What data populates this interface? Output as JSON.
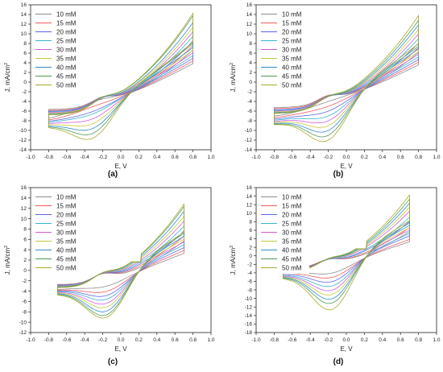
{
  "legend_labels": [
    "10 mM",
    "15 mM",
    "20 mM",
    "25 mM",
    "30 mM",
    "35 mM",
    "40 mM",
    "45 mM",
    "50 mM"
  ],
  "series_colors": [
    "#8c8c8c",
    "#f25a5a",
    "#5a68e6",
    "#37b3d6",
    "#d45ad9",
    "#c8c838",
    "#2f8ccf",
    "#4f9a57",
    "#a8a82a"
  ],
  "chart_data": [
    {
      "type": "line",
      "panel_label": "(a)",
      "xlabel": "E, V",
      "ylabel": "J, mA/cm",
      "xlim": [
        -1.0,
        1.0
      ],
      "ylim": [
        -14,
        16
      ],
      "xticks": [
        "-1.0",
        "-0.8",
        "-0.6",
        "-0.4",
        "-0.2",
        "0.0",
        "0.2",
        "0.4",
        "0.6",
        "0.8",
        "1.0"
      ],
      "yticks": [
        "16",
        "14",
        "12",
        "10",
        "8",
        "6",
        "4",
        "2",
        "0",
        "-2",
        "-4",
        "-6",
        "-8",
        "-10",
        "-12",
        "-14"
      ],
      "e_range": [
        -0.8,
        0.8
      ],
      "series": [
        {
          "name": "10 mM",
          "cathodic_peak": {
            "E": -0.3,
            "J": -4.0
          },
          "J_at_Emin": -7.5,
          "J_at_Emax": 7.0
        },
        {
          "name": "15 mM",
          "cathodic_peak": {
            "E": -0.3,
            "J": -5.0
          },
          "J_at_Emin": -7.8,
          "J_at_Emax": 8.0
        },
        {
          "name": "20 mM",
          "cathodic_peak": {
            "E": -0.3,
            "J": -6.0
          },
          "J_at_Emin": -8.0,
          "J_at_Emax": 9.0
        },
        {
          "name": "25 mM",
          "cathodic_peak": {
            "E": -0.3,
            "J": -6.5
          },
          "J_at_Emin": -8.2,
          "J_at_Emax": 10.0
        },
        {
          "name": "30 mM",
          "cathodic_peak": {
            "E": -0.3,
            "J": -7.5
          },
          "J_at_Emin": -8.4,
          "J_at_Emax": 11.0
        },
        {
          "name": "35 mM",
          "cathodic_peak": {
            "E": -0.3,
            "J": -8.5
          },
          "J_at_Emin": -8.6,
          "J_at_Emax": 12.0
        },
        {
          "name": "40 mM",
          "cathodic_peak": {
            "E": -0.3,
            "J": -9.5
          },
          "J_at_Emin": -8.8,
          "J_at_Emax": 13.0
        },
        {
          "name": "45 mM",
          "cathodic_peak": {
            "E": -0.3,
            "J": -10.5
          },
          "J_at_Emin": -8.9,
          "J_at_Emax": 14.5
        },
        {
          "name": "50 mM",
          "cathodic_peak": {
            "E": -0.3,
            "J": -11.5
          },
          "J_at_Emin": -9.0,
          "J_at_Emax": 15.0
        }
      ]
    },
    {
      "type": "line",
      "panel_label": "(b)",
      "xlabel": "E, V",
      "ylabel": "J, mA/cm",
      "xlim": [
        -1.0,
        1.0
      ],
      "ylim": [
        -14,
        16
      ],
      "xticks": [
        "-1.0",
        "-0.8",
        "-0.6",
        "-0.4",
        "-0.2",
        "0.0",
        "0.2",
        "0.4",
        "0.6",
        "0.8",
        "1.0"
      ],
      "yticks": [
        "16",
        "14",
        "12",
        "10",
        "8",
        "6",
        "4",
        "2",
        "0",
        "-2",
        "-4",
        "-6",
        "-8",
        "-10",
        "-12",
        "-14"
      ],
      "e_range": [
        -0.8,
        0.8
      ],
      "series": [
        {
          "name": "10 mM",
          "cathodic_peak": {
            "E": -0.2,
            "J": -4.0
          },
          "J_at_Emin": -7.0,
          "J_at_Emax": 6.5
        },
        {
          "name": "15 mM",
          "cathodic_peak": {
            "E": -0.2,
            "J": -5.0
          },
          "J_at_Emin": -7.3,
          "J_at_Emax": 7.5
        },
        {
          "name": "20 mM",
          "cathodic_peak": {
            "E": -0.2,
            "J": -6.0
          },
          "J_at_Emin": -7.6,
          "J_at_Emax": 8.5
        },
        {
          "name": "25 mM",
          "cathodic_peak": {
            "E": -0.2,
            "J": -7.0
          },
          "J_at_Emin": -7.8,
          "J_at_Emax": 9.5
        },
        {
          "name": "30 mM",
          "cathodic_peak": {
            "E": -0.2,
            "J": -8.0
          },
          "J_at_Emin": -8.0,
          "J_at_Emax": 10.5
        },
        {
          "name": "35 mM",
          "cathodic_peak": {
            "E": -0.2,
            "J": -9.0
          },
          "J_at_Emin": -8.2,
          "J_at_Emax": 11.5
        },
        {
          "name": "40 mM",
          "cathodic_peak": {
            "E": -0.2,
            "J": -10.0
          },
          "J_at_Emin": -8.4,
          "J_at_Emax": 12.5
        },
        {
          "name": "45 mM",
          "cathodic_peak": {
            "E": -0.2,
            "J": -11.0
          },
          "J_at_Emin": -8.5,
          "J_at_Emax": 13.5
        },
        {
          "name": "50 mM",
          "cathodic_peak": {
            "E": -0.2,
            "J": -12.0
          },
          "J_at_Emin": -8.6,
          "J_at_Emax": 14.5
        }
      ]
    },
    {
      "type": "line",
      "panel_label": "(c)",
      "xlabel": "E, V",
      "ylabel": "J, mA/cm",
      "xlim": [
        -1.0,
        1.0
      ],
      "ylim": [
        -12,
        16
      ],
      "xticks": [
        "-1.0",
        "-0.8",
        "-0.6",
        "-0.4",
        "-0.2",
        "0.0",
        "0.2",
        "0.4",
        "0.6",
        "0.8",
        "1.0"
      ],
      "yticks": [
        "16",
        "14",
        "12",
        "10",
        "8",
        "6",
        "4",
        "2",
        "0",
        "-2",
        "-4",
        "-6",
        "-8",
        "-10",
        "-12"
      ],
      "e_range": [
        -0.7,
        0.7
      ],
      "series": [
        {
          "name": "10 mM",
          "cathodic_peak": {
            "E": -0.15,
            "J": -3.0
          },
          "J_at_Emin": -3.6,
          "J_at_Emax": 6.0
        },
        {
          "name": "15 mM",
          "cathodic_peak": {
            "E": -0.15,
            "J": -4.0
          },
          "J_at_Emin": -3.7,
          "J_at_Emax": 7.0
        },
        {
          "name": "20 mM",
          "cathodic_peak": {
            "E": -0.15,
            "J": -4.8
          },
          "J_at_Emin": -3.8,
          "J_at_Emax": 8.0
        },
        {
          "name": "25 mM",
          "cathodic_peak": {
            "E": -0.15,
            "J": -5.5
          },
          "J_at_Emin": -3.9,
          "J_at_Emax": 9.0
        },
        {
          "name": "30 mM",
          "cathodic_peak": {
            "E": -0.15,
            "J": -6.3
          },
          "J_at_Emin": -4.0,
          "J_at_Emax": 10.0
        },
        {
          "name": "35 mM",
          "cathodic_peak": {
            "E": -0.15,
            "J": -7.0
          },
          "J_at_Emin": -4.1,
          "J_at_Emax": 11.0
        },
        {
          "name": "40 mM",
          "cathodic_peak": {
            "E": -0.15,
            "J": -7.8
          },
          "J_at_Emin": -4.2,
          "J_at_Emax": 12.0
        },
        {
          "name": "45 mM",
          "cathodic_peak": {
            "E": -0.15,
            "J": -8.5
          },
          "J_at_Emin": -4.3,
          "J_at_Emax": 13.0
        },
        {
          "name": "50 mM",
          "cathodic_peak": {
            "E": -0.15,
            "J": -9.0
          },
          "J_at_Emin": -4.4,
          "J_at_Emax": 13.5
        }
      ]
    },
    {
      "type": "line",
      "panel_label": "(d)",
      "xlabel": "E, V",
      "ylabel": "J, mA/cm",
      "xlim": [
        -1.0,
        1.0
      ],
      "ylim": [
        -18,
        16
      ],
      "xticks": [
        "-1.0",
        "-0.8",
        "-0.6",
        "-0.4",
        "-0.2",
        "0.0",
        "0.2",
        "0.4",
        "0.6",
        "0.8",
        "1.0"
      ],
      "yticks": [
        "16",
        "14",
        "12",
        "10",
        "8",
        "6",
        "4",
        "2",
        "0",
        "-2",
        "-4",
        "-6",
        "-8",
        "-10",
        "-12",
        "-14",
        "-16",
        "-18"
      ],
      "e_range": [
        -0.7,
        0.7
      ],
      "series": [
        {
          "name": "10 mM",
          "cathodic_peak": {
            "E": -0.15,
            "J": -4.0
          },
          "J_at_Emin": -3.8,
          "J_at_Emax": 6.0
        },
        {
          "name": "15 mM",
          "cathodic_peak": {
            "E": -0.15,
            "J": -5.0
          },
          "J_at_Emin": -4.0,
          "J_at_Emax": 7.0
        },
        {
          "name": "20 mM",
          "cathodic_peak": {
            "E": -0.15,
            "J": -6.0
          },
          "J_at_Emin": -4.2,
          "J_at_Emax": 8.5
        },
        {
          "name": "25 mM",
          "cathodic_peak": {
            "E": -0.15,
            "J": -7.0
          },
          "J_at_Emin": -4.4,
          "J_at_Emax": 9.5
        },
        {
          "name": "30 mM",
          "cathodic_peak": {
            "E": -0.15,
            "J": -8.0
          },
          "J_at_Emin": -4.5,
          "J_at_Emax": 11.0
        },
        {
          "name": "35 mM",
          "cathodic_peak": {
            "E": -0.15,
            "J": -9.0
          },
          "J_at_Emin": -4.6,
          "J_at_Emax": 12.0
        },
        {
          "name": "40 mM",
          "cathodic_peak": {
            "E": -0.15,
            "J": -10.0
          },
          "J_at_Emin": -4.7,
          "J_at_Emax": 13.0
        },
        {
          "name": "45 mM",
          "cathodic_peak": {
            "E": -0.15,
            "J": -11.0
          },
          "J_at_Emin": -4.8,
          "J_at_Emax": 14.0
        },
        {
          "name": "50 mM",
          "cathodic_peak": {
            "E": -0.15,
            "J": -12.5
          },
          "J_at_Emin": -4.9,
          "J_at_Emax": 15.0
        }
      ]
    }
  ]
}
